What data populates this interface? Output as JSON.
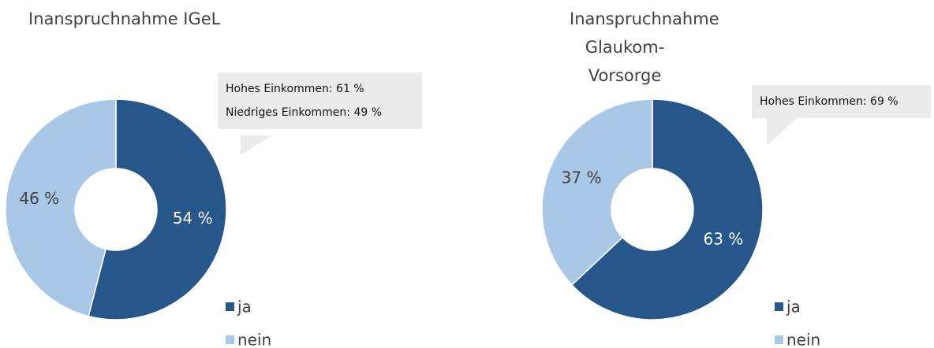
{
  "chart_data": [
    {
      "type": "donut",
      "title": "Inanspruchnahme IGeL",
      "categories": [
        "ja",
        "nein"
      ],
      "values": [
        54,
        46
      ],
      "value_labels": [
        "54 %",
        "46 %"
      ],
      "colors": [
        "#26568a",
        "#a9c8e8"
      ],
      "annotations": [
        "Hohes Einkommen: 61 %",
        "Niedriges Einkommen: 49 %"
      ]
    },
    {
      "type": "donut",
      "title": "Inanspruchnahme Glaukom-Vorsorge",
      "categories": [
        "ja",
        "nein"
      ],
      "values": [
        63,
        37
      ],
      "value_labels": [
        "63 %",
        "37 %"
      ],
      "colors": [
        "#26568a",
        "#a9c8e8"
      ],
      "annotations": [
        "Hohes Einkommen: 69 %"
      ]
    }
  ]
}
